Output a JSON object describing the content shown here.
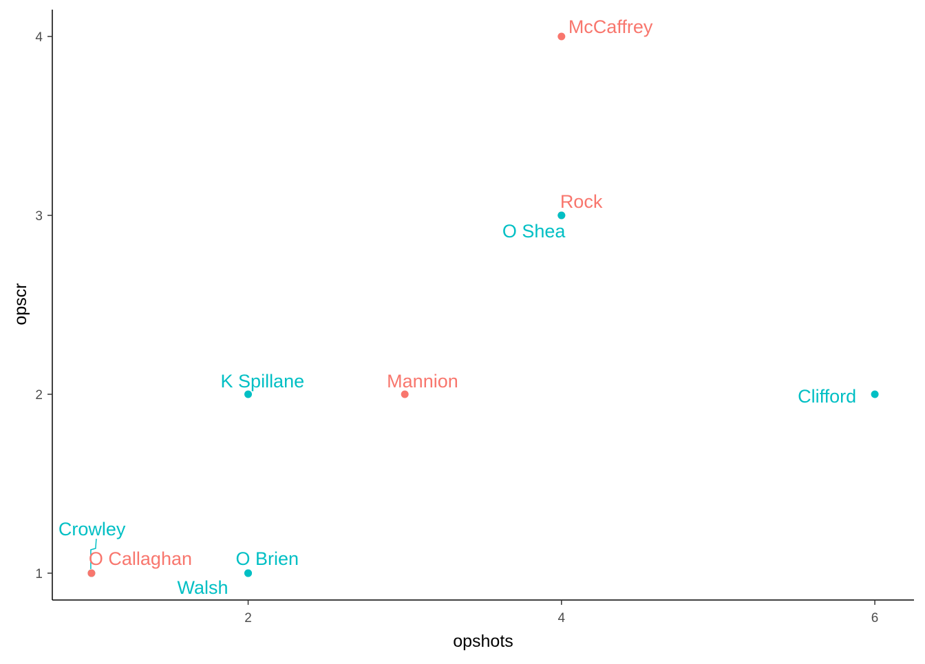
{
  "chart_data": {
    "type": "scatter",
    "title": "",
    "xlabel": "opshots",
    "ylabel": "opscr",
    "xlim": [
      0.75,
      6.25
    ],
    "ylim": [
      0.85,
      4.15
    ],
    "x_ticks": [
      2,
      4,
      6
    ],
    "y_ticks": [
      1,
      2,
      3,
      4
    ],
    "x_tick_labels": [
      "2",
      "4",
      "6"
    ],
    "y_tick_labels": [
      "1",
      "2",
      "3",
      "4"
    ],
    "grid": false,
    "legend": "none",
    "group_colors": {
      "red": "#F8766D",
      "teal": "#00BFC4"
    },
    "points": [
      {
        "label": "McCaffrey",
        "x": 4,
        "y": 4,
        "group": "red"
      },
      {
        "label": "Rock",
        "x": 4,
        "y": 3,
        "group": "red"
      },
      {
        "label": "O Shea",
        "x": 4,
        "y": 3,
        "group": "teal"
      },
      {
        "label": "Mannion",
        "x": 3,
        "y": 2,
        "group": "red"
      },
      {
        "label": "K Spillane",
        "x": 2,
        "y": 2,
        "group": "teal"
      },
      {
        "label": "Clifford",
        "x": 6,
        "y": 2,
        "group": "teal"
      },
      {
        "label": "Crowley",
        "x": 1,
        "y": 1,
        "group": "teal"
      },
      {
        "label": "O Callaghan",
        "x": 1,
        "y": 1,
        "group": "red"
      },
      {
        "label": "O Brien",
        "x": 2,
        "y": 1,
        "group": "teal"
      },
      {
        "label": "Walsh",
        "x": 2,
        "y": 1,
        "group": "teal"
      }
    ]
  }
}
